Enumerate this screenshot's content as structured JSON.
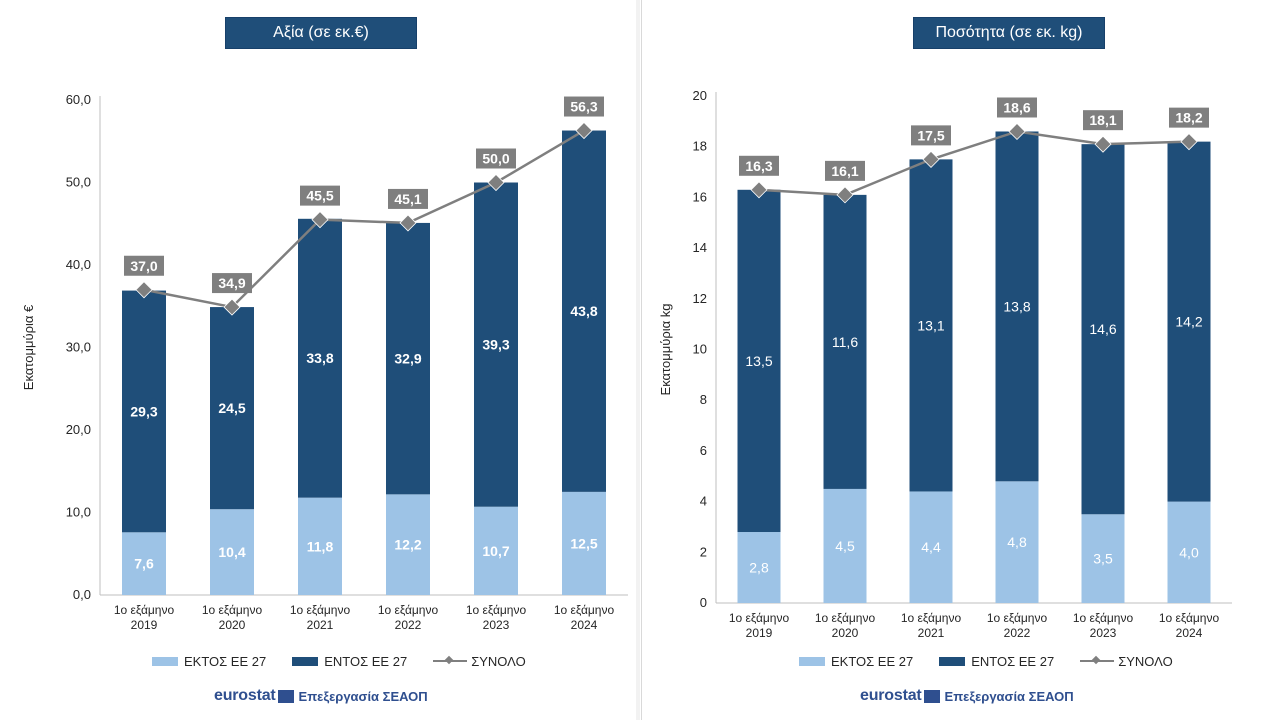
{
  "colors": {
    "outside": "#9dc3e6",
    "inside": "#1f4e79",
    "total": "#7f7f7f",
    "label_bg": "#7f7f7f",
    "title_bg": "#1f4e79"
  },
  "legend": {
    "outside": "ΕΚΤΟΣ ΕΕ 27",
    "inside": "ΕΝΤΟΣ ΕΕ 27",
    "total": "ΣΥΝΟΛΟ"
  },
  "source": {
    "logo": "eurostat",
    "text": "Επεξεργασία ΣΕΑΟΠ"
  },
  "chart_data": [
    {
      "type": "bar",
      "stacked": true,
      "title": "Αξία (σε εκ.€)",
      "ylabel": "Εκατομμύρια €",
      "ylim": [
        0,
        60
      ],
      "yticks": [
        0,
        10,
        20,
        30,
        40,
        50,
        60
      ],
      "ytick_labels": [
        "0,0",
        "10,0",
        "20,0",
        "30,0",
        "40,0",
        "50,0",
        "60,0"
      ],
      "categories": [
        [
          "1ο εξάμηνο",
          "2019"
        ],
        [
          "1ο εξάμηνο",
          "2020"
        ],
        [
          "1ο εξάμηνο",
          "2021"
        ],
        [
          "1ο εξάμηνο",
          "2022"
        ],
        [
          "1ο εξάμηνο",
          "2023"
        ],
        [
          "1ο εξάμηνο",
          "2024"
        ]
      ],
      "series": [
        {
          "name": "ΕΚΤΟΣ ΕΕ 27",
          "values": [
            7.6,
            10.4,
            11.8,
            12.2,
            10.7,
            12.5
          ],
          "labels": [
            "7,6",
            "10,4",
            "11,8",
            "12,2",
            "10,7",
            "12,5"
          ]
        },
        {
          "name": "ΕΝΤΟΣ ΕΕ 27",
          "values": [
            29.3,
            24.5,
            33.8,
            32.9,
            39.3,
            43.8
          ],
          "labels": [
            "29,3",
            "24,5",
            "33,8",
            "32,9",
            "39,3",
            "43,8"
          ]
        }
      ],
      "total": {
        "name": "ΣΥΝΟΛΟ",
        "values": [
          37.0,
          34.9,
          45.5,
          45.1,
          50.0,
          56.3
        ],
        "labels": [
          "37,0",
          "34,9",
          "45,5",
          "45,1",
          "50,0",
          "56,3"
        ]
      },
      "bold_labels": true,
      "legend_position": "bottom"
    },
    {
      "type": "bar",
      "stacked": true,
      "title": "Ποσότητα (σε εκ. kg)",
      "ylabel": "Εκατομμύρια kg",
      "ylim": [
        0,
        20
      ],
      "yticks": [
        0,
        2,
        4,
        6,
        8,
        10,
        12,
        14,
        16,
        18,
        20
      ],
      "ytick_labels": [
        "0",
        "2",
        "4",
        "6",
        "8",
        "10",
        "12",
        "14",
        "16",
        "18",
        "20"
      ],
      "categories": [
        [
          "1ο εξάμηνο",
          "2019"
        ],
        [
          "1ο εξάμηνο",
          "2020"
        ],
        [
          "1ο εξάμηνο",
          "2021"
        ],
        [
          "1ο εξάμηνο",
          "2022"
        ],
        [
          "1ο εξάμηνο",
          "2023"
        ],
        [
          "1ο εξάμηνο",
          "2024"
        ]
      ],
      "series": [
        {
          "name": "ΕΚΤΟΣ ΕΕ 27",
          "values": [
            2.8,
            4.5,
            4.4,
            4.8,
            3.5,
            4.0
          ],
          "labels": [
            "2,8",
            "4,5",
            "4,4",
            "4,8",
            "3,5",
            "4,0"
          ]
        },
        {
          "name": "ΕΝΤΟΣ ΕΕ 27",
          "values": [
            13.5,
            11.6,
            13.1,
            13.8,
            14.6,
            14.2
          ],
          "labels": [
            "13,5",
            "11,6",
            "13,1",
            "13,8",
            "14,6",
            "14,2"
          ]
        }
      ],
      "total": {
        "name": "ΣΥΝΟΛΟ",
        "values": [
          16.3,
          16.1,
          17.5,
          18.6,
          18.1,
          18.2
        ],
        "labels": [
          "16,3",
          "16,1",
          "17,5",
          "18,6",
          "18,1",
          "18,2"
        ]
      },
      "bold_labels": false,
      "legend_position": "bottom"
    }
  ]
}
